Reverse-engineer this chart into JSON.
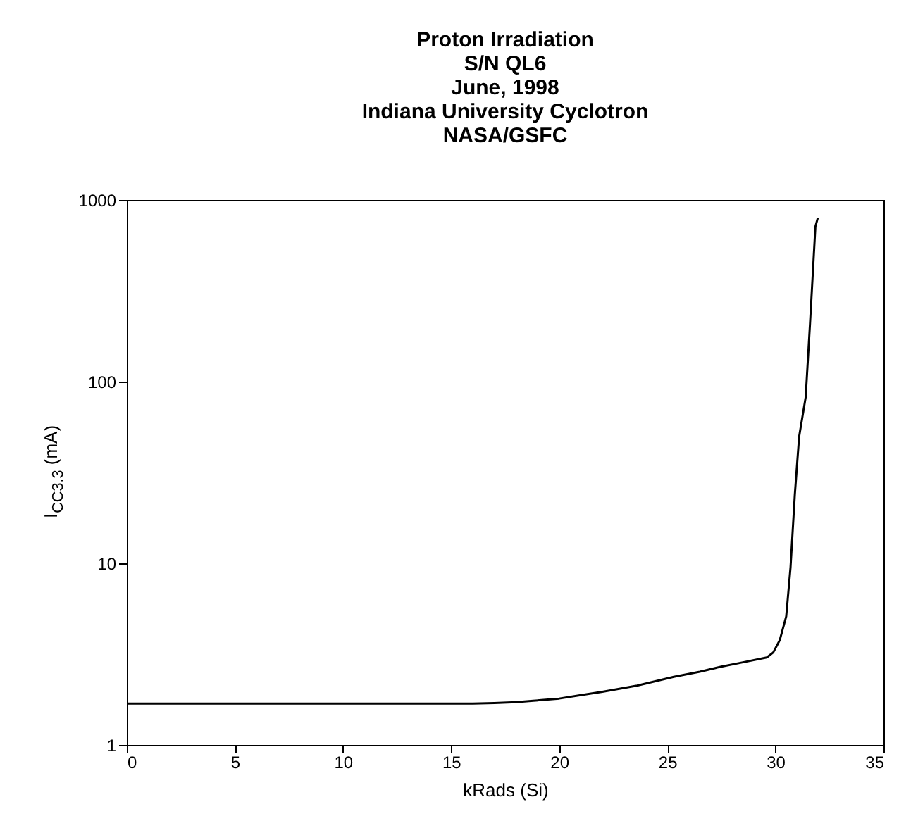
{
  "chart_data": {
    "type": "line",
    "title": [
      "Proton Irradiation",
      "S/N QL6",
      "June, 1998",
      "Indiana University Cyclotron",
      "NASA/GSFC"
    ],
    "xlabel": "kRads (Si)",
    "ylabel": "I$_{CC3.3}$ (mA)",
    "x": [
      0,
      2,
      4,
      6,
      8,
      10,
      12,
      14,
      16,
      17,
      18,
      18.8,
      20,
      21,
      22,
      23.6,
      25.3,
      26.5,
      27.5,
      28.5,
      29.6,
      29.9,
      30.2,
      30.5,
      30.7,
      30.9,
      31.1,
      31.4,
      31.6,
      31.85,
      31.96
    ],
    "series": [
      {
        "color": "#000000",
        "values": [
          1.69,
          1.69,
          1.69,
          1.69,
          1.69,
          1.69,
          1.69,
          1.69,
          1.69,
          1.7,
          1.72,
          1.75,
          1.8,
          1.88,
          1.96,
          2.12,
          2.37,
          2.53,
          2.7,
          2.85,
          3.03,
          3.23,
          3.77,
          5.1,
          9.5,
          24,
          50,
          82,
          207,
          713,
          795
        ]
      }
    ],
    "xlim": [
      0,
      35
    ],
    "xticks": [
      0,
      5,
      10,
      15,
      20,
      25,
      30,
      35
    ],
    "ylim": [
      1,
      1000
    ],
    "yticks": [
      1,
      10,
      100,
      1000
    ],
    "log": "y",
    "grid": false,
    "legend": false,
    "marker": "none",
    "line_style": "solid"
  }
}
